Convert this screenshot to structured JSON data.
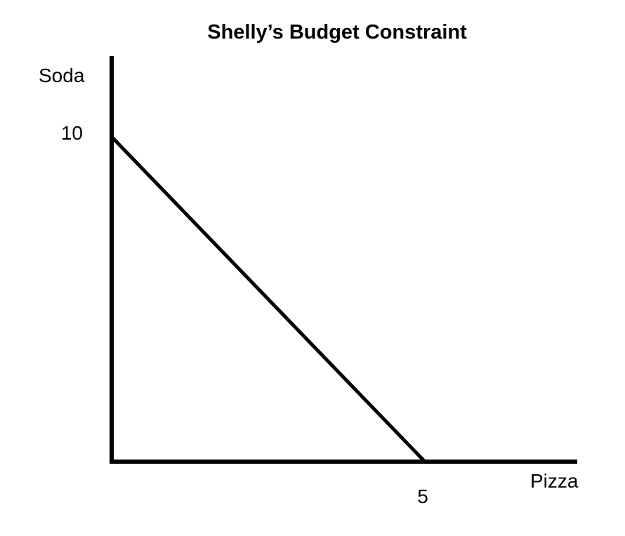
{
  "chart_data": {
    "type": "line",
    "title": "Shelly’s Budget Constraint",
    "xlabel": "Pizza",
    "ylabel": "Soda",
    "series": [
      {
        "name": "budget-constraint-line",
        "points": [
          [
            0,
            10
          ],
          [
            5,
            0
          ]
        ]
      }
    ],
    "x_ticks": [
      {
        "value": 5,
        "label": "5"
      }
    ],
    "y_ticks": [
      {
        "value": 10,
        "label": "10"
      }
    ],
    "xlim": [
      0,
      7.4
    ],
    "ylim": [
      0,
      12.5
    ],
    "grid": false,
    "legend": "none",
    "line_color": "#000000",
    "axis_color": "#000000",
    "background": "#ffffff"
  }
}
